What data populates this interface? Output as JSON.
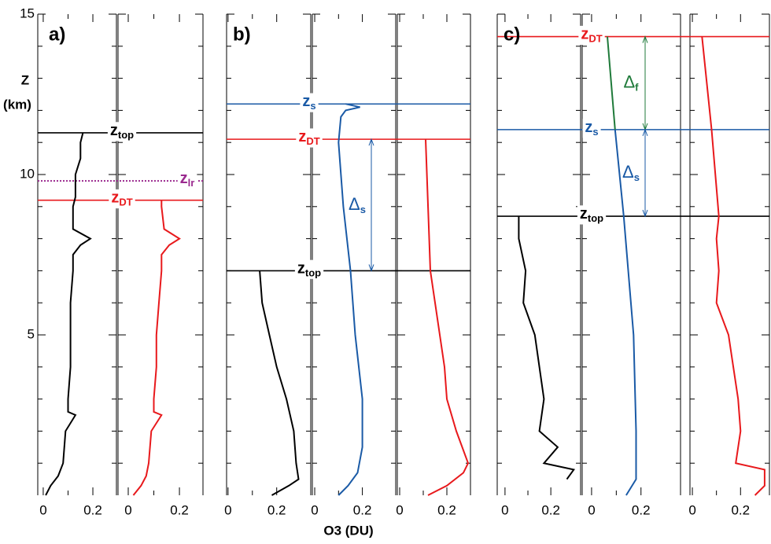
{
  "chart_data": {
    "type": "line",
    "y_label": {
      "line1": "Z",
      "line2": "(km)"
    },
    "x_label": "O3 (DU)",
    "ylim": [
      0,
      15
    ],
    "yticks": [
      5,
      10,
      15
    ],
    "yminorticks": [
      1,
      2,
      3,
      4,
      6,
      7,
      8,
      9,
      11,
      12,
      13,
      14
    ],
    "panels": [
      {
        "label": "a)",
        "subplots": [
          {
            "xlim": [
              -0.022,
              0.295
            ],
            "xticks": [
              0,
              0.2
            ],
            "xminorticks": [
              0.1
            ],
            "profiles": [
              {
                "color": "#000000",
                "z": [
                  0,
                  0.3,
                  0.6,
                  1,
                  2,
                  2.5,
                  2.6,
                  3,
                  4,
                  5,
                  6,
                  7,
                  7.5,
                  7.8,
                  8,
                  8.3,
                  9,
                  9.3,
                  10,
                  10.5,
                  11,
                  11.3
                ],
                "values": [
                  0.01,
                  0.03,
                  0.06,
                  0.08,
                  0.09,
                  0.13,
                  0.1,
                  0.1,
                  0.11,
                  0.11,
                  0.11,
                  0.12,
                  0.12,
                  0.15,
                  0.19,
                  0.12,
                  0.12,
                  0.13,
                  0.13,
                  0.15,
                  0.15,
                  0.16
                ]
              }
            ]
          },
          {
            "xlim": [
              -0.04,
              0.292
            ],
            "xticks": [
              0,
              0.2
            ],
            "xminorticks": [
              0.1
            ],
            "profiles": [
              {
                "color": "#e8191c",
                "z": [
                  0,
                  0.3,
                  0.6,
                  1,
                  2,
                  2.5,
                  2.6,
                  3,
                  4,
                  5,
                  6,
                  7,
                  7.5,
                  7.8,
                  8,
                  8.3,
                  9,
                  9.2
                ],
                "values": [
                  0.02,
                  0.05,
                  0.07,
                  0.08,
                  0.09,
                  0.13,
                  0.1,
                  0.1,
                  0.11,
                  0.11,
                  0.12,
                  0.13,
                  0.13,
                  0.16,
                  0.2,
                  0.14,
                  0.13,
                  0.13
                ]
              }
            ]
          }
        ],
        "levels": [
          {
            "label": {
              "base": "z",
              "sub": "top"
            },
            "z": 11.3,
            "color": "#000000",
            "style": "solid"
          },
          {
            "label": {
              "base": "z",
              "sub": "lr"
            },
            "z": 9.8,
            "color": "#9b2a8f",
            "style": "dotted"
          },
          {
            "label": {
              "base": "z",
              "sub": "DT"
            },
            "z": 9.2,
            "color": "#e8191c",
            "style": "solid"
          }
        ],
        "arrows": []
      },
      {
        "label": "b)",
        "subplots": [
          {
            "xlim": [
              -0.006,
              0.34
            ],
            "xticks": [
              0,
              0.2
            ],
            "xminorticks": [
              0.1
            ],
            "profiles": [
              {
                "color": "#000000",
                "z": [
                  0,
                  0.3,
                  0.5,
                  1,
                  2,
                  3,
                  4,
                  5,
                  6,
                  7
                ],
                "values": [
                  0.18,
                  0.25,
                  0.29,
                  0.28,
                  0.27,
                  0.24,
                  0.2,
                  0.17,
                  0.14,
                  0.13
                ]
              }
            ]
          },
          {
            "xlim": [
              -0.01,
              0.34
            ],
            "xticks": [
              0,
              0.2
            ],
            "xminorticks": [
              0.1
            ],
            "profiles": [
              {
                "color": "#1a5aa6",
                "z": [
                  0,
                  0.3,
                  0.7,
                  1.5,
                  3,
                  5,
                  7,
                  9,
                  11,
                  11.8,
                  12,
                  12.1,
                  12.2
                ],
                "values": [
                  0.1,
                  0.14,
                  0.18,
                  0.2,
                  0.2,
                  0.17,
                  0.15,
                  0.12,
                  0.1,
                  0.11,
                  0.13,
                  0.19,
                  0.13
                ]
              }
            ]
          },
          {
            "xlim": [
              -0.01,
              0.3
            ],
            "xticks": [
              0,
              0.2
            ],
            "xminorticks": [
              0.1
            ],
            "profiles": [
              {
                "color": "#e8191c",
                "z": [
                  0,
                  0.3,
                  0.7,
                  1,
                  2,
                  3,
                  4,
                  5,
                  6,
                  7,
                  11.1
                ],
                "values": [
                  0.12,
                  0.2,
                  0.27,
                  0.29,
                  0.24,
                  0.2,
                  0.19,
                  0.17,
                  0.15,
                  0.13,
                  0.11
                ]
              }
            ]
          }
        ],
        "levels": [
          {
            "label": {
              "base": "z",
              "sub": "s"
            },
            "z": 12.2,
            "color": "#1a5aa6",
            "style": "solid"
          },
          {
            "label": {
              "base": "z",
              "sub": "DT"
            },
            "z": 11.1,
            "color": "#e8191c",
            "style": "solid"
          },
          {
            "label": {
              "base": "z",
              "sub": "top"
            },
            "z": 7.0,
            "color": "#000000",
            "style": "solid"
          }
        ],
        "arrows": [
          {
            "label": {
              "base": "Δ",
              "sub": "s"
            },
            "from": 11.1,
            "to": 7.0,
            "color": "#1a5aa6"
          }
        ]
      },
      {
        "label": "c)",
        "subplots": [
          {
            "xlim": [
              -0.034,
              0.33
            ],
            "xticks": [
              0,
              0.2
            ],
            "xminorticks": [
              0.1
            ],
            "profiles": [
              {
                "color": "#000000",
                "z": [
                  0.5,
                  0.8,
                  1,
                  1.5,
                  2,
                  3,
                  4,
                  5,
                  6,
                  7,
                  8,
                  8.7
                ],
                "values": [
                  0.27,
                  0.3,
                  0.17,
                  0.23,
                  0.15,
                  0.17,
                  0.15,
                  0.13,
                  0.08,
                  0.09,
                  0.06,
                  0.06
                ]
              }
            ]
          },
          {
            "xlim": [
              -0.038,
              0.36
            ],
            "xticks": [
              0,
              0.2
            ],
            "xminorticks": [
              0.1
            ],
            "profiles": [
              {
                "color": "#1f7a3a",
                "z": [
                  11.4,
                  14.3
                ],
                "values": [
                  0.095,
                  0.064
                ]
              },
              {
                "color": "#1a5aa6",
                "z": [
                  0,
                  0.5,
                  2,
                  5,
                  8.7,
                  11.4
                ],
                "values": [
                  0.14,
                  0.18,
                  0.18,
                  0.17,
                  0.13,
                  0.095
                ]
              }
            ]
          },
          {
            "xlim": [
              -0.01,
              0.32
            ],
            "xticks": [
              0,
              0.2
            ],
            "xminorticks": [
              0.1
            ],
            "profiles": [
              {
                "color": "#e8191c",
                "z": [
                  0,
                  0.3,
                  0.8,
                  1,
                  2,
                  3,
                  4,
                  5,
                  6,
                  7,
                  8,
                  8.7,
                  11.4,
                  14.3
                ],
                "values": [
                  0.26,
                  0.3,
                  0.3,
                  0.18,
                  0.2,
                  0.19,
                  0.17,
                  0.15,
                  0.1,
                  0.11,
                  0.1,
                  0.11,
                  0.08,
                  0.04
                ]
              }
            ]
          }
        ],
        "levels": [
          {
            "label": {
              "base": "z",
              "sub": "DT"
            },
            "z": 14.3,
            "color": "#e8191c",
            "style": "solid"
          },
          {
            "label": {
              "base": "z",
              "sub": "s"
            },
            "z": 11.4,
            "color": "#1a5aa6",
            "style": "solid"
          },
          {
            "label": {
              "base": "z",
              "sub": "top"
            },
            "z": 8.7,
            "color": "#000000",
            "style": "solid"
          }
        ],
        "arrows": [
          {
            "label": {
              "base": "Δ",
              "sub": "f"
            },
            "from": 14.3,
            "to": 11.4,
            "color": "#1f7a3a"
          },
          {
            "label": {
              "base": "Δ",
              "sub": "s"
            },
            "from": 11.4,
            "to": 8.7,
            "color": "#1a5aa6"
          }
        ]
      }
    ]
  }
}
